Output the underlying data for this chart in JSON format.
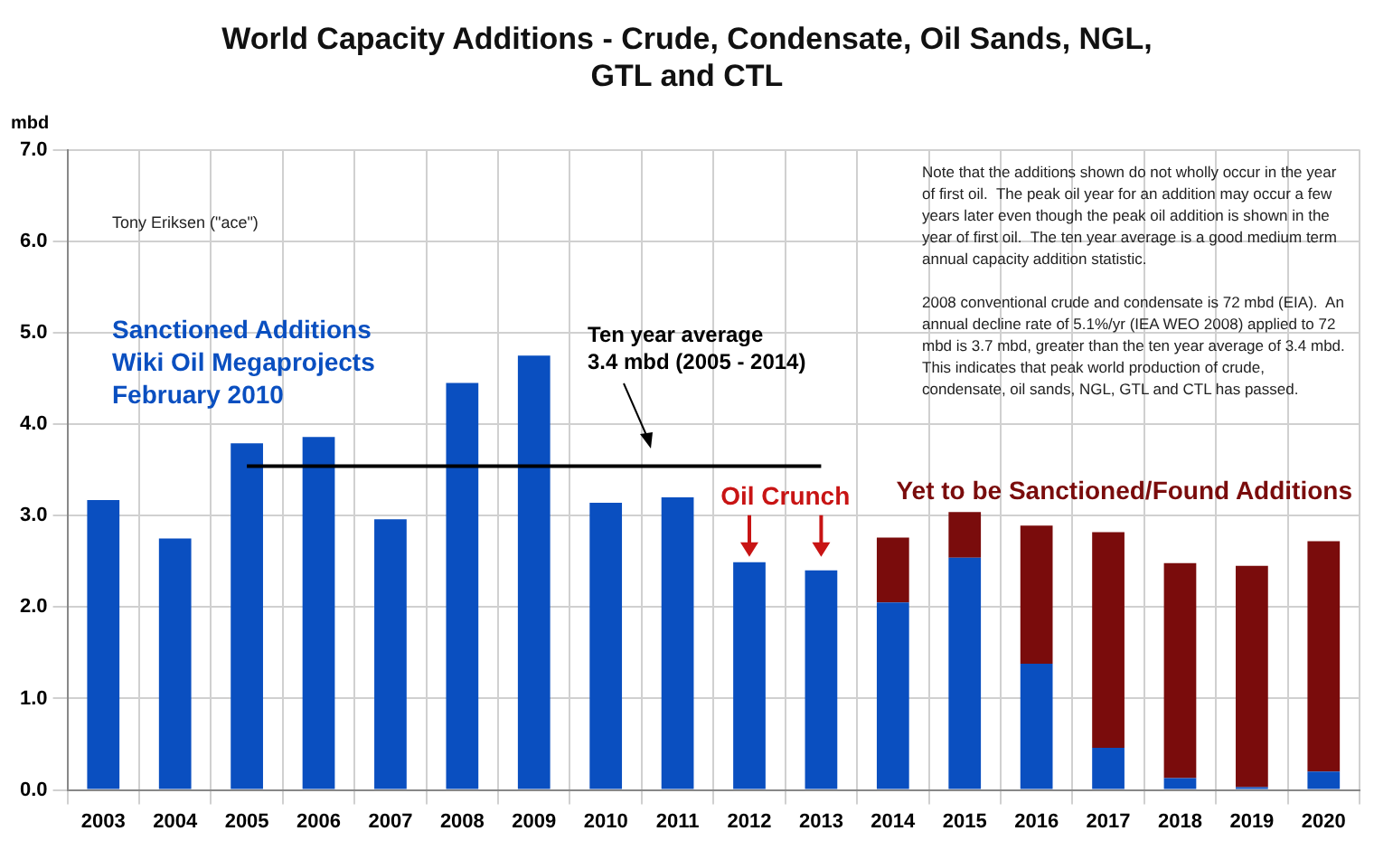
{
  "chart_data": {
    "type": "bar",
    "title": "World Capacity Additions - Crude, Condensate, Oil Sands, NGL,\nGTL and CTL",
    "ylabel": "mbd",
    "categories": [
      "2003",
      "2004",
      "2005",
      "2006",
      "2007",
      "2008",
      "2009",
      "2010",
      "2011",
      "2012",
      "2013",
      "2014",
      "2015",
      "2016",
      "2017",
      "2018",
      "2019",
      "2020"
    ],
    "stacked": true,
    "series": [
      {
        "name": "Sanctioned Additions",
        "color": "#0a4fc0",
        "values": [
          3.17,
          2.75,
          3.79,
          3.86,
          2.96,
          4.45,
          4.75,
          3.14,
          3.2,
          2.49,
          2.4,
          2.05,
          2.54,
          1.38,
          0.46,
          0.13,
          0.03,
          0.2
        ]
      },
      {
        "name": "Yet to be Sanctioned/Found Additions",
        "color": "#7a0c0c",
        "values": [
          null,
          null,
          null,
          null,
          null,
          null,
          null,
          null,
          null,
          null,
          null,
          0.71,
          0.5,
          1.51,
          2.36,
          2.35,
          2.42,
          2.52
        ]
      },
      {
        "type": "line",
        "color": "#000000",
        "values": [
          null,
          null,
          3.54,
          3.54,
          3.54,
          3.54,
          3.54,
          3.54,
          3.54,
          3.54,
          3.54,
          null,
          null,
          null,
          null,
          null,
          null,
          null
        ]
      }
    ],
    "ylim": [
      0,
      7
    ],
    "yticks": [
      {
        "value": 0,
        "label": "0.0"
      },
      {
        "value": 1,
        "label": "1.0"
      },
      {
        "value": 2,
        "label": "2.0"
      },
      {
        "value": 3,
        "label": "3.0"
      },
      {
        "value": 4,
        "label": "4.0"
      },
      {
        "value": 5,
        "label": "5.0"
      },
      {
        "value": 6,
        "label": "6.0"
      },
      {
        "value": 7,
        "label": "7.0"
      }
    ],
    "grid": true,
    "legend": false,
    "marker": "none",
    "annotations": [
      "Tony Eriksen (\"ace\")",
      "Wiki Oil Megaprojects\nFebruary 2010",
      "Note that the additions shown do not wholly occur in the year of first oil.  The peak oil year for an addition may occur a few years later even though the peak oil addition is shown in the year of first oil.  The ten year average is a good medium term annual capacity addition statistic.",
      "2008 conventional crude and condensate is 72 mbd (EIA).  An annual decline rate of 5.1%/yr (IEA WEO 2008) applied to 72 mbd is 3.7 mbd, greater than the ten year average of 3.4 mbd.  This indicates that peak world production of crude, condensate, oil sands, NGL, GTL and CTL has passed.",
      "Ten year average\n3.4 mbd (2005 - 2014)",
      {
        "text": "Oil Crunch",
        "x": "2012",
        "y": 2.49
      }
    ]
  }
}
